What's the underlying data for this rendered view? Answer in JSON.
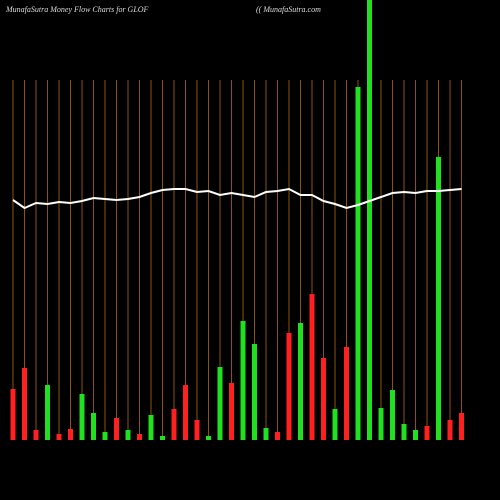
{
  "chart_data": {
    "type": "bar",
    "title": "MunafaSutra  Money Flow  Charts for GLOF",
    "subtitle": "(( MunafaSutra.com",
    "categories": [
      null,
      null,
      null,
      null,
      null,
      null,
      null,
      null,
      null,
      null,
      null,
      null,
      null,
      null,
      null,
      null,
      null,
      null,
      null,
      null,
      null,
      null,
      null,
      null,
      null,
      null,
      null,
      null,
      null,
      null,
      null,
      null,
      null,
      null,
      null,
      null,
      null,
      null,
      null,
      null
    ],
    "series": [
      {
        "type": "bar",
        "values": [
          51,
          72,
          10,
          55,
          6,
          11,
          46,
          27,
          8,
          22,
          10,
          6,
          25,
          4,
          31,
          55,
          20,
          4,
          73,
          57,
          119,
          96,
          12,
          8,
          107,
          117,
          146,
          82,
          31,
          93,
          353,
          460,
          32,
          50,
          16,
          10,
          14,
          283,
          20,
          27
        ],
        "colors": [
          "#ff2020",
          "#ff2020",
          "#ff2020",
          "#20e020",
          "#ff2020",
          "#ff2020",
          "#20e020",
          "#20e020",
          "#20e020",
          "#ff2020",
          "#20e020",
          "#ff2020",
          "#20e020",
          "#20e020",
          "#ff2020",
          "#ff2020",
          "#ff2020",
          "#20e020",
          "#20e020",
          "#ff2020",
          "#20e020",
          "#20e020",
          "#20e020",
          "#ff2020",
          "#ff2020",
          "#20e020",
          "#ff2020",
          "#ff2020",
          "#20e020",
          "#ff2020",
          "#20e020",
          "#20e020",
          "#20e020",
          "#20e020",
          "#20e020",
          "#20e020",
          "#ff2020",
          "#20e020",
          "#ff2020",
          "#ff2020"
        ]
      },
      {
        "type": "line",
        "color": "#ffffff",
        "values": [
          240,
          232,
          237,
          236,
          238,
          237,
          239,
          242,
          241,
          240,
          241,
          243,
          247,
          250,
          251,
          251,
          248,
          249,
          245,
          247,
          245,
          243,
          248,
          249,
          251,
          245,
          245,
          239,
          236,
          232,
          235,
          239,
          243,
          247,
          248,
          247,
          249,
          249,
          250,
          251
        ]
      }
    ],
    "ylim": [
      0,
      440
    ],
    "grid": true,
    "grid_color": "#b06a10"
  }
}
